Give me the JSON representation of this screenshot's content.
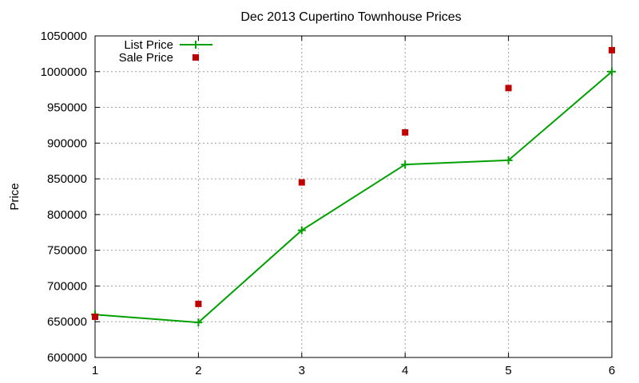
{
  "chart_data": {
    "type": "line",
    "title": "Dec 2013 Cupertino Townhouse Prices",
    "xlabel": "",
    "ylabel": "Price",
    "x": [
      1,
      2,
      3,
      4,
      5,
      6
    ],
    "xlim": [
      1,
      6
    ],
    "ylim": [
      600000,
      1050000
    ],
    "x_ticks": [
      "1",
      "2",
      "3",
      "4",
      "5",
      "6"
    ],
    "y_ticks": [
      "600000",
      "650000",
      "700000",
      "750000",
      "800000",
      "850000",
      "900000",
      "950000",
      "1000000",
      "1050000"
    ],
    "grid": true,
    "legend_position": "top-left",
    "series": [
      {
        "name": "List Price",
        "style": "line-with-plus-markers",
        "color": "#00a000",
        "values": [
          660000,
          649000,
          778000,
          870000,
          876000,
          1000000
        ]
      },
      {
        "name": "Sale Price",
        "style": "square-markers",
        "color": "#c00000",
        "values": [
          657000,
          675000,
          845000,
          915000,
          977000,
          1030000
        ]
      }
    ]
  }
}
